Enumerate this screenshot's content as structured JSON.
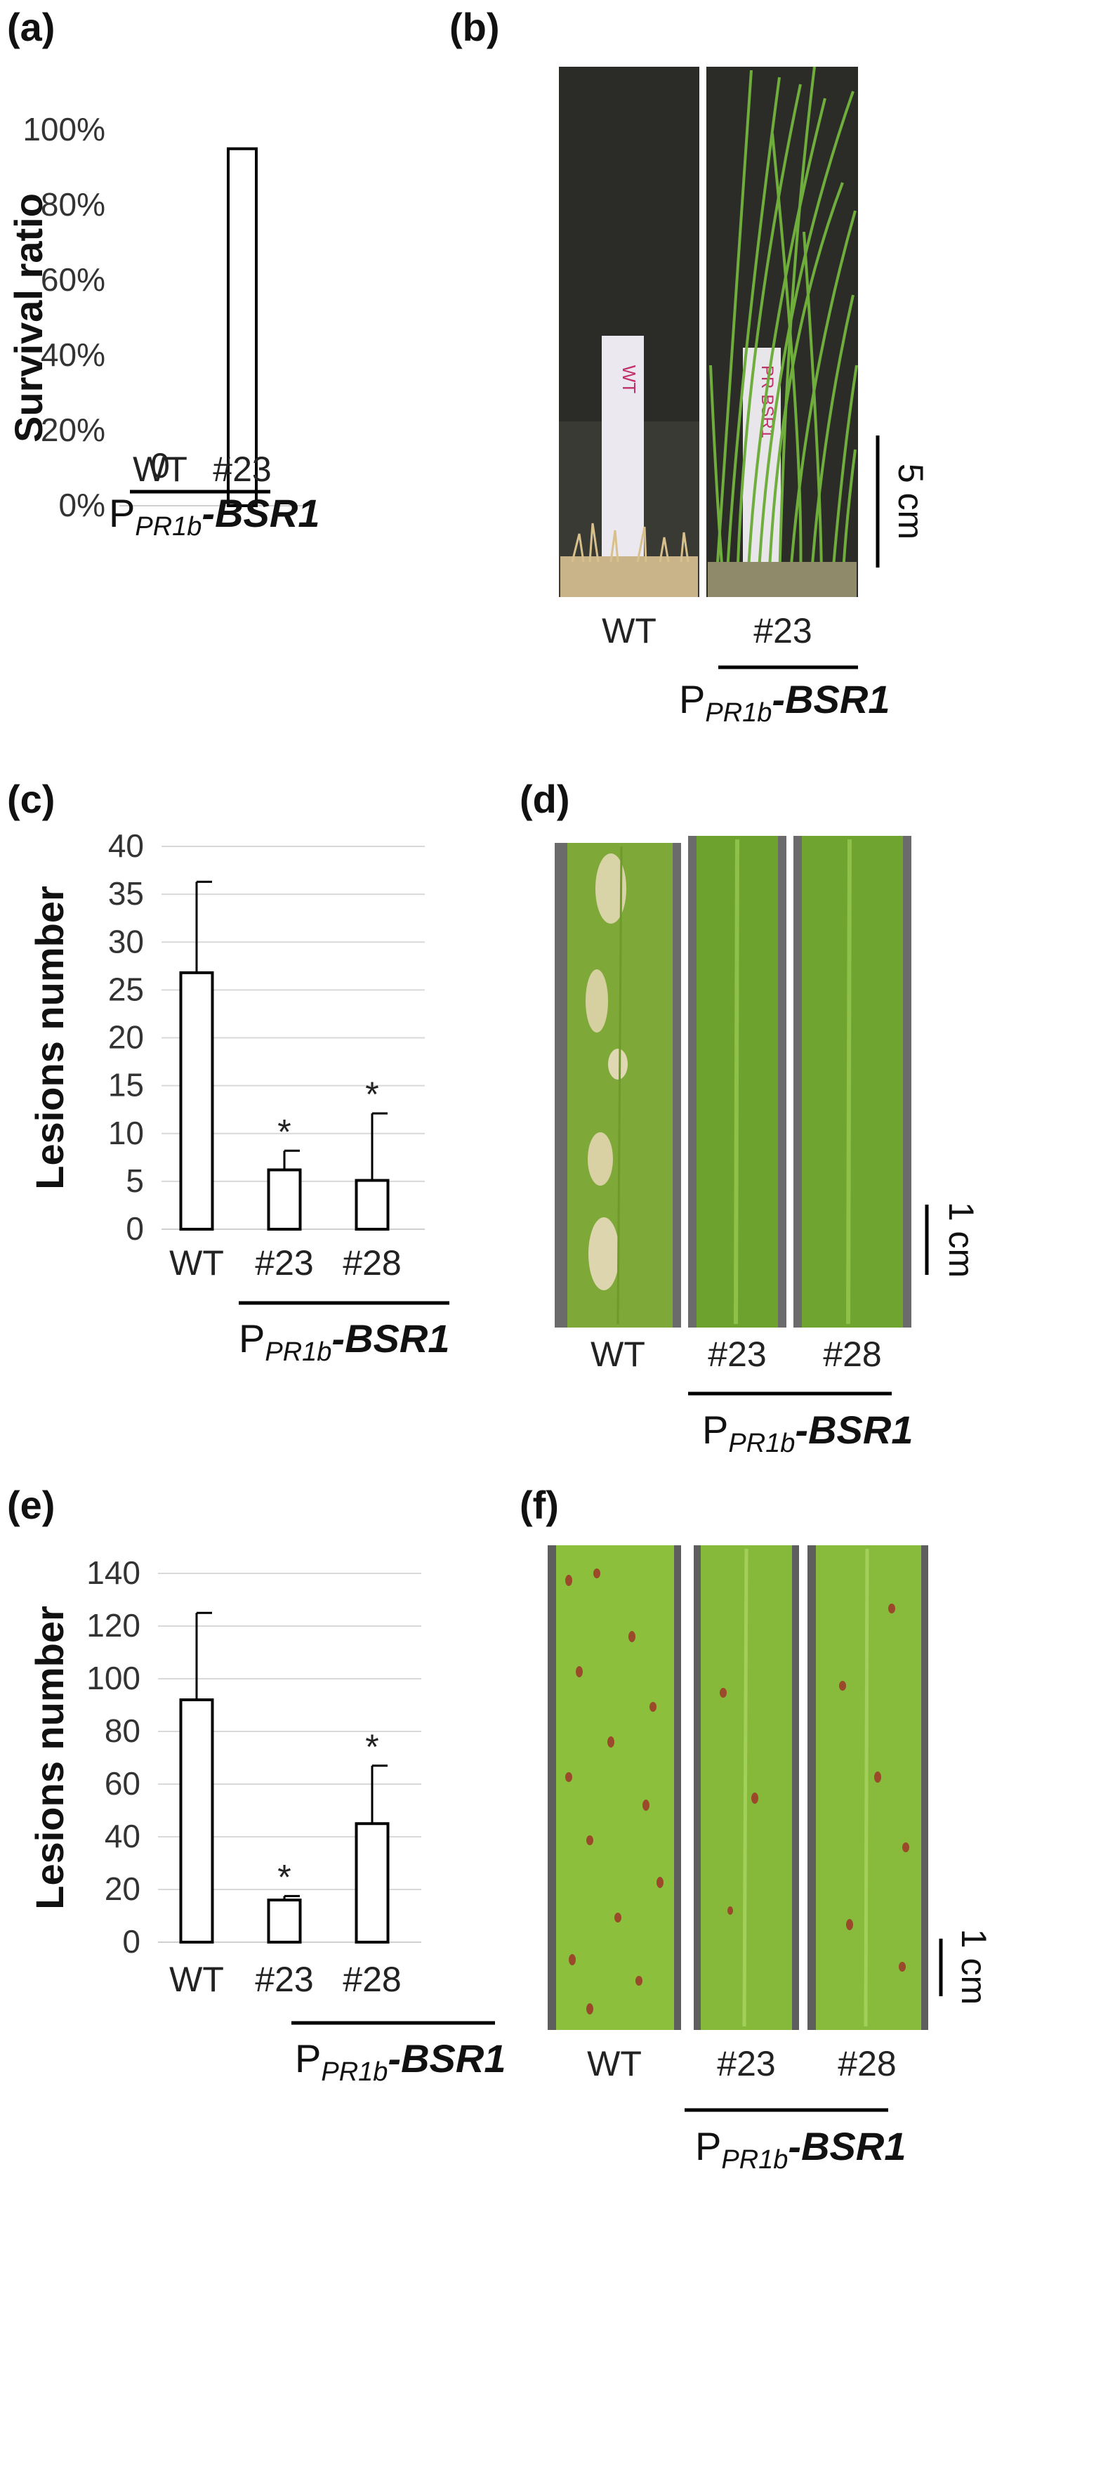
{
  "panels": {
    "a": {
      "letter": "(a)"
    },
    "b": {
      "letter": "(b)",
      "labels": [
        "WT",
        "#23"
      ],
      "scale_bar": "5 cm",
      "card_text": [
        "WT",
        "PR-BSR1"
      ]
    },
    "c": {
      "letter": "(c)"
    },
    "d": {
      "letter": "(d)",
      "labels": [
        "WT",
        "#23",
        "#28"
      ],
      "scale_bar": "1 cm"
    },
    "e": {
      "letter": "(e)"
    },
    "f": {
      "letter": "(f)",
      "labels": [
        "WT",
        "#23",
        "#28"
      ],
      "scale_bar": "1 cm"
    }
  },
  "construct": {
    "prefix": "P",
    "subscript": "PR1b",
    "dash": "-",
    "gene": "BSR1"
  },
  "chart_data": [
    {
      "id": "a",
      "type": "bar",
      "ylabel": "Survival ratio",
      "categories": [
        "WT",
        "#23"
      ],
      "values": [
        0,
        95
      ],
      "value_labels": [
        "0",
        ""
      ],
      "ylim": [
        0,
        100
      ],
      "yticks": [
        "0%",
        "20%",
        "40%",
        "60%",
        "80%",
        "100%"
      ],
      "grid": false
    },
    {
      "id": "c",
      "type": "bar",
      "ylabel": "Lesions number",
      "categories": [
        "WT",
        "#23",
        "#28"
      ],
      "values": [
        26.8,
        6.2,
        5.1
      ],
      "error": [
        9.5,
        2.0,
        7.0
      ],
      "significance": [
        "",
        "*",
        "*"
      ],
      "ylim": [
        0,
        40
      ],
      "yticks": [
        "0",
        "5",
        "10",
        "15",
        "20",
        "25",
        "30",
        "35",
        "40"
      ],
      "grid": true
    },
    {
      "id": "e",
      "type": "bar",
      "ylabel": "Lesions number",
      "categories": [
        "WT",
        "#23",
        "#28"
      ],
      "values": [
        92,
        16,
        45
      ],
      "error": [
        33,
        1.5,
        22
      ],
      "significance": [
        "",
        "*",
        "*"
      ],
      "ylim": [
        0,
        140
      ],
      "yticks": [
        "0",
        "20",
        "40",
        "60",
        "80",
        "100",
        "120",
        "140"
      ],
      "grid": true
    }
  ],
  "colors": {
    "bar_fill": "#ffffff",
    "bar_stroke": "#000000",
    "grid": "#d9d9d9",
    "photo_bg": "#2a2a26",
    "leaf": "#7aa832",
    "leaf_dark": "#5e8a22"
  }
}
